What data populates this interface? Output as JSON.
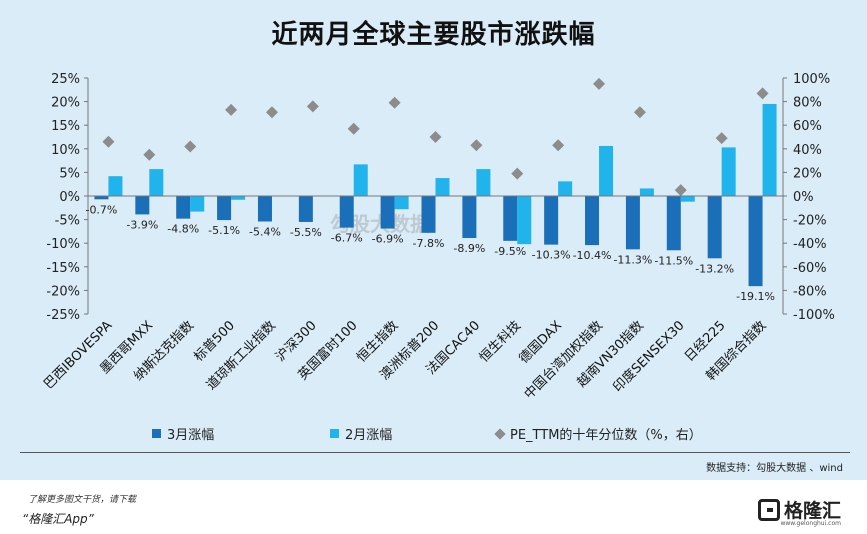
{
  "title": "近两月全球主要股市涨跌幅",
  "watermark": "勾股大数据",
  "chart_data": {
    "type": "bar",
    "title": "近两月全球主要股市涨跌幅",
    "categories": [
      "巴西IBOVESPA",
      "墨西哥MXX",
      "纳斯达克指数",
      "标普500",
      "道琼斯工业指数",
      "沪深300",
      "英国富时100",
      "恒生指数",
      "澳洲标普200",
      "法国CAC40",
      "恒生科技",
      "德国DAX",
      "中国台湾加权指数",
      "越南VN30指数",
      "印度SENSEX30",
      "日经225",
      "韩国综合指数"
    ],
    "series": [
      {
        "name": "3月涨幅",
        "axis": "left",
        "color": "#1a6fb8",
        "values": [
          -0.7,
          -3.9,
          -4.8,
          -5.1,
          -5.4,
          -5.5,
          -6.7,
          -6.9,
          -7.8,
          -8.9,
          -9.5,
          -10.3,
          -10.4,
          -11.3,
          -11.5,
          -13.2,
          -19.1
        ],
        "labels": [
          "-0.7%",
          "-3.9%",
          "-4.8%",
          "-5.1%",
          "-5.4%",
          "-5.5%",
          "-6.7%",
          "-6.9%",
          "-7.8%",
          "-8.9%",
          "-9.5%",
          "-10.3%",
          "-10.4%",
          "-11.3%",
          "-11.5%",
          "-13.2%",
          "-19.1%"
        ]
      },
      {
        "name": "2月涨幅",
        "axis": "left",
        "color": "#21b4ec",
        "values": [
          4.2,
          5.7,
          -3.3,
          -0.8,
          0.0,
          0.0,
          6.7,
          -2.8,
          3.8,
          5.7,
          -10.2,
          3.1,
          10.6,
          1.6,
          -1.2,
          10.3,
          19.5
        ]
      },
      {
        "name": "PE_TTM的十年分位数（%，右）",
        "axis": "right",
        "color": "#8c8c8c",
        "marker": "diamond",
        "values": [
          46,
          35,
          42,
          73,
          71,
          76,
          57,
          79,
          50,
          43,
          19,
          43,
          95,
          71,
          5,
          49,
          87
        ]
      }
    ],
    "y_left": {
      "ylim": [
        -25,
        25
      ],
      "ticks": [
        "25%",
        "20%",
        "15%",
        "10%",
        "5%",
        "0%",
        "-5%",
        "-10%",
        "-15%",
        "-20%",
        "-25%"
      ],
      "tick_values": [
        25,
        20,
        15,
        10,
        5,
        0,
        -5,
        -10,
        -15,
        -20,
        -25
      ]
    },
    "y_right": {
      "ylim": [
        -100,
        100
      ],
      "ticks": [
        "100%",
        "80%",
        "60%",
        "40%",
        "20%",
        "0%",
        "-20%",
        "-40%",
        "-60%",
        "-80%",
        "-100%"
      ],
      "tick_values": [
        100,
        80,
        60,
        40,
        20,
        0,
        -20,
        -40,
        -60,
        -80,
        -100
      ]
    },
    "legend": "bottom"
  },
  "legend": {
    "item1": "3月涨幅",
    "item2": "2月涨幅",
    "item3": "PE_TTM的十年分位数（%，右）"
  },
  "colors": {
    "mar": "#1a6fb8",
    "feb": "#21b4ec",
    "pe": "#8c8c8c",
    "panel": "#d9ecf7"
  },
  "source": "数据支持：勾股大数据 、wind",
  "footer": {
    "line1": "了解更多图文干货，请下载",
    "line2": "“格隆汇App”",
    "logo_text": "格隆汇",
    "logo_sub": "www.gelonghui.com"
  }
}
